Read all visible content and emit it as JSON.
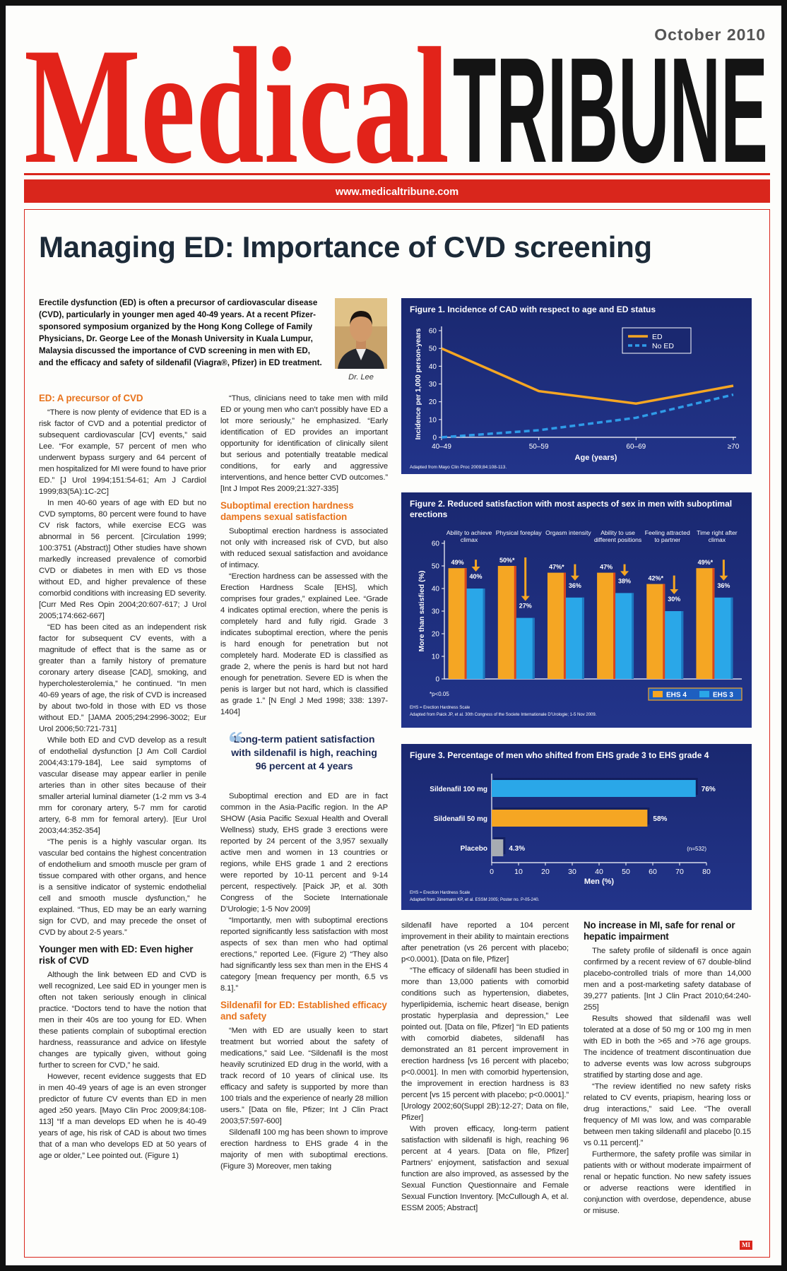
{
  "header": {
    "date": "October 2010",
    "masthead_1": "Medical",
    "masthead_2": "TRIBUNE",
    "url": "www.medicaltribune.com"
  },
  "article": {
    "headline": "Managing ED: Importance of CVD screening",
    "intro": "Erectile dysfunction (ED) is often a precursor of cardiovascular disease (CVD), particularly in younger men aged 40-49 years. At a recent Pfizer-sponsored symposium organized by the Hong Kong College of Family Physicians, Dr. George Lee of the Monash University in Kuala Lumpur, Malaysia discussed the importance of CVD screening in men with ED, and the efficacy and safety of sildenafil (Viagra®, Pfizer) in ED treatment.",
    "photo_caption": "Dr. Lee",
    "columns": [
      [
        {
          "heading": "ED: A precursor of CVD",
          "color": "#e8731c"
        },
        {
          "text": "“There is now plenty of evidence that ED is a risk factor of CVD and a potential predictor of subsequent cardiovascular [CV] events,” said Lee. “For example, 57 percent of men who underwent bypass surgery and 64 percent of men hospitalized for MI were found to have prior ED.” [J Urol 1994;151:54-61; Am J Cardiol 1999;83(5A):1C-2C]"
        },
        {
          "text": "In men 40-60 years of age with ED but no CVD symptoms, 80 percent were found to have CV risk factors, while exercise ECG was abnormal in 56 percent. [Circulation 1999; 100:3751 (Abstract)] Other studies have shown markedly increased prevalence of comorbid CVD or diabetes in men with ED vs those without ED, and higher prevalence of these comorbid conditions with increasing ED severity. [Curr Med Res Opin 2004;20:607-617; J Urol 2005;174:662-667]"
        },
        {
          "text": "“ED has been cited as an independent risk factor for subsequent CV events, with a magnitude of effect that is the same as or greater than a family history of premature coronary artery disease [CAD], smoking, and hypercholesterolemia,” he continued. “In men 40-69 years of age, the risk of CVD is increased by about two-fold in those with ED vs those without ED.” [JAMA 2005;294:2996-3002; Eur Urol 2006;50:721-731]"
        },
        {
          "text": "While both ED and CVD develop as a result of endothelial dysfunction [J Am Coll Cardiol 2004;43:179-184], Lee said symptoms of vascular disease may appear earlier in penile arteries than in other sites because of their smaller arterial luminal diameter (1-2 mm vs 3-4 mm for coronary artery, 5-7 mm for carotid artery, 6-8 mm for femoral artery). [Eur Urol 2003;44:352-354]"
        },
        {
          "text": "“The penis is a highly vascular organ. Its vascular bed contains the highest concentration of endothelium and smooth muscle per gram of tissue compared with other organs, and hence is a sensitive indicator of systemic endothelial cell and smooth muscle dysfunction,” he explained. “Thus, ED may be an early warning sign for CVD, and may precede the onset of CVD by about 2-5 years.”"
        },
        {
          "heading": "Younger men with ED: Even higher risk of CVD",
          "color": "#1a1a1a"
        },
        {
          "text": "Although the link between ED and CVD is well recognized, Lee said ED in younger men is often not taken seriously enough in clinical practice. “Doctors tend to have the notion that men in their 40s are too young for ED. When these patients complain of suboptimal erection hardness, reassurance and advice on lifestyle changes are typically given, without going further to screen for CVD,” he said."
        },
        {
          "text": "However, recent evidence suggests that ED in men 40-49 years of age is an even stronger predictor of future CV events than ED in men aged ≥50 years. [Mayo Clin Proc 2009;84:108-113] “If a man develops ED when he is 40-49 years of age, his risk of CAD is about two times that of a man who develops ED at 50 years of age or older,” Lee pointed out. (Figure 1)"
        }
      ],
      [
        {
          "text": "“Thus, clinicians need to take men with mild ED or young men who can’t possibly have ED a lot more seriously,” he emphasized. “Early identification of ED provides an important opportunity for identification of clinically silent but serious and potentially treatable medical conditions, for early and aggressive interventions, and hence better CVD outcomes.” [Int J Impot Res 2009;21:327-335]"
        },
        {
          "heading": "Suboptimal erection hardness dampens sexual satisfaction",
          "color": "#e8731c"
        },
        {
          "text": "Suboptimal erection hardness is associated not only with increased risk of CVD, but also with reduced sexual satisfaction and avoidance of intimacy."
        },
        {
          "text": "“Erection hardness can be assessed with the Erection Hardness Scale [EHS], which comprises four grades,” explained Lee. “Grade 4 indicates optimal erection, where the penis is completely hard and fully rigid. Grade 3 indicates suboptimal erection, where the penis is hard enough for penetration but not completely hard. Moderate ED is classified as grade 2, where the penis is hard but not hard enough for penetration. Severe ED is when the penis is larger but not hard, which is classified as grade 1.” [N Engl J Med 1998; 338: 1397-1404]"
        },
        {
          "quote": "Long-term patient satisfaction with sildenafil is high, reaching 96 percent at 4 years"
        },
        {
          "text": "Suboptimal erection and ED are in fact common in the Asia-Pacific region. In the AP SHOW (Asia Pacific Sexual Health and Overall Wellness) study, EHS grade 3 erections were reported by 24 percent of the 3,957 sexually active men and women in 13 countries or regions, while EHS grade 1 and 2 erections were reported by 10-11 percent and 9-14 percent, respectively. [Paick JP, et al. 30th Congress of the Societe Internationale D’Urologie; 1-5 Nov 2009]"
        },
        {
          "text": "“Importantly, men with suboptimal erections reported significantly less satisfaction with most aspects of sex than men who had optimal erections,” reported Lee. (Figure 2) “They also had significantly less sex than men in the EHS 4 category [mean frequency per month, 6.5 vs 8.1].”"
        },
        {
          "heading": "Sildenafil for ED: Established efficacy and safety",
          "color": "#e8731c"
        },
        {
          "text": "“Men with ED are usually keen to start treatment but worried about the safety of medications,” said Lee. “Sildenafil is the most heavily scrutinized ED drug in the world, with a track record of 10 years of clinical use. Its efficacy and safety is supported by more than 100 trials and the experience of nearly 28 million users.” [Data on file, Pfizer; Int J Clin Pract 2003;57:597-600]"
        },
        {
          "text": "Sildenafil 100 mg has been shown to improve erection hardness to EHS grade 4 in the majority of men with suboptimal erections. (Figure 3) Moreover, men taking"
        }
      ],
      [
        {
          "text": "sildenafil have reported a 104 percent improvement in their ability to maintain erections after penetration (vs 26 percent with placebo; p<0.0001). [Data on file, Pfizer]"
        },
        {
          "text": "“The efficacy of sildenafil has been studied in more than 13,000 patients with comorbid conditions such as hypertension, diabetes, hyperlipidemia, ischemic heart disease, benign prostatic hyperplasia and depression,” Lee pointed out. [Data on file, Pfizer] “In ED patients with comorbid diabetes, sildenafil has demonstrated an 81 percent improvement in erection hardness [vs 16 percent with placebo; p<0.0001]. In men with comorbid hypertension, the improvement in erection hardness is 83 percent [vs 15 percent with placebo; p<0.0001].” [Urology 2002;60(Suppl 2B):12-27; Data on file, Pfizer]"
        },
        {
          "text": "With proven efficacy, long-term patient satisfaction with sildenafil is high, reaching 96 percent at 4 years. [Data on file, Pfizer] Partners’ enjoyment, satisfaction and sexual function are also improved, as assessed by the Sexual Function Questionnaire and Female Sexual Function Inventory. [McCullough A, et al. ESSM 2005; Abstract]"
        }
      ],
      [
        {
          "heading": "No increase in MI, safe for renal or hepatic impairment",
          "color": "#1a1a1a"
        },
        {
          "text": "The safety profile of sildenafil is once again confirmed by a recent review of 67 double-blind placebo-controlled trials of more than 14,000 men and a post-marketing safety database of 39,277 patients. [Int J Clin Pract 2010;64:240-255]"
        },
        {
          "text": "Results showed that sildenafil was well tolerated at a dose of 50 mg or 100 mg in men with ED in both the >65 and >76 age groups. The incidence of treatment discontinuation due to adverse events was low across subgroups stratified by starting dose and age."
        },
        {
          "text": "“The review identified no new safety risks related to CV events, priapism, hearing loss or drug interactions,” said Lee. “The overall frequency of MI was low, and was comparable between men taking sildenafil and placebo [0.15 vs 0.11 percent].”"
        },
        {
          "text": "Furthermore, the safety profile was similar in patients with or without moderate impairment of renal or hepatic function. No new safety issues or adverse reactions were identified in conjunction with overdose, dependence, abuse or misuse."
        }
      ]
    ],
    "logo": "MI"
  },
  "chart_data": [
    {
      "type": "line",
      "title": "Figure 1. Incidence of CAD with respect to age and ED status",
      "categories": [
        "40–49",
        "50–59",
        "60–69",
        "≥70"
      ],
      "series": [
        {
          "name": "ED",
          "color": "#f5a623",
          "values": [
            50,
            26,
            19,
            29
          ]
        },
        {
          "name": "No ED",
          "color": "#2f9be8",
          "dashed": true,
          "values": [
            0,
            4,
            11,
            24
          ]
        }
      ],
      "ylim": [
        0,
        60
      ],
      "yticks": [
        0,
        10,
        20,
        30,
        40,
        50,
        60
      ],
      "ylabel": "Incidence per 1,000 person-years",
      "xlabel": "Age (years)",
      "legend": "upper right",
      "source": "Adapted from Mayo Clin Proc 2009;84:108-113."
    },
    {
      "type": "bar",
      "title": "Figure 2. Reduced satisfaction with most aspects of sex in men with suboptimal erections",
      "categories": [
        "Ability to achieve climax",
        "Physical foreplay",
        "Orgasm intensity",
        "Ability to use different positions",
        "Feeling attracted to partner",
        "Time right after climax"
      ],
      "series": [
        {
          "name": "EHS 4",
          "color": "#f5a623",
          "values": [
            49,
            50,
            47,
            47,
            42,
            49
          ],
          "value_labels": [
            "49%",
            "50%*",
            "47%*",
            "47%",
            "42%*",
            "49%*"
          ]
        },
        {
          "name": "EHS 3",
          "color": "#2aa7e8",
          "values": [
            40,
            27,
            36,
            38,
            30,
            36
          ],
          "value_labels": [
            "40%",
            "27%",
            "36%",
            "38%",
            "30%",
            "36%"
          ]
        }
      ],
      "ylim": [
        0,
        60
      ],
      "yticks": [
        0,
        10,
        20,
        30,
        40,
        50,
        60
      ],
      "ylabel": "More than satisfied (%)",
      "legend": "lower right",
      "notes": [
        "*p<0.05",
        "EHS = Erection Hardness Scale",
        "Adapted from Paick JP, et al. 30th Congress of the Societe Internationale D’Urologie; 1-5 Nov 2009."
      ]
    },
    {
      "type": "barh",
      "title": "Figure 3. Percentage of men who shifted from EHS grade 3 to EHS grade 4",
      "categories": [
        "Sildenafil 100 mg",
        "Sildenafil 50 mg",
        "Placebo"
      ],
      "values": [
        76,
        58,
        4.3
      ],
      "value_labels": [
        "76%",
        "58%",
        "4.3%"
      ],
      "colors": [
        "#2aa7e8",
        "#f5a623",
        "#a7acb2"
      ],
      "xlim": [
        0,
        80
      ],
      "xticks": [
        0,
        10,
        20,
        30,
        40,
        50,
        60,
        70,
        80
      ],
      "xlabel": "Men (%)",
      "annotation": "(n=532)",
      "notes": [
        "EHS = Erection Hardness Scale",
        "Adapted from Jünemann KP, et al. ESSM 2005; Poster no. P-05-240."
      ]
    }
  ]
}
